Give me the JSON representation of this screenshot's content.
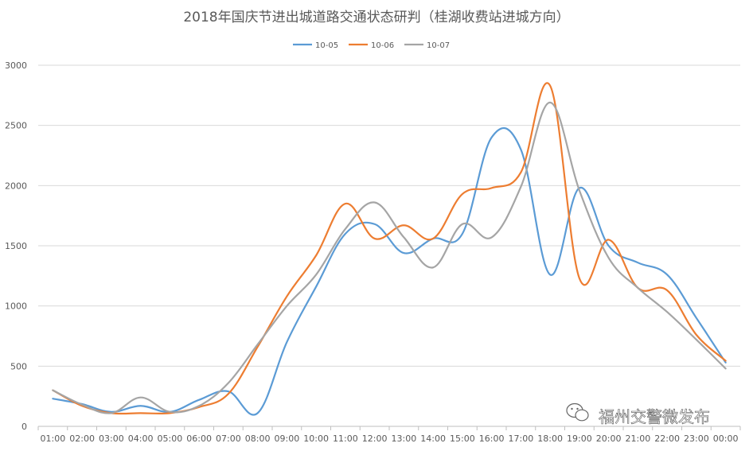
{
  "chart_data": {
    "type": "line",
    "title": "2018年国庆节进出城道路交通状态研判（桂湖收费站进城方向）",
    "categories": [
      "01:00",
      "02:00",
      "03:00",
      "04:00",
      "05:00",
      "06:00",
      "07:00",
      "08:00",
      "09:00",
      "10:00",
      "11:00",
      "12:00",
      "13:00",
      "14:00",
      "15:00",
      "16:00",
      "17:00",
      "18:00",
      "19:00",
      "20:00",
      "21:00",
      "22:00",
      "23:00",
      "00:00"
    ],
    "series": [
      {
        "name": "10-05",
        "color": "#5b9bd5",
        "values": [
          230,
          185,
          120,
          170,
          120,
          220,
          290,
          110,
          700,
          1160,
          1600,
          1680,
          1440,
          1560,
          1600,
          2400,
          2300,
          1260,
          1980,
          1500,
          1360,
          1260,
          900,
          530
        ]
      },
      {
        "name": "10-06",
        "color": "#ed7d31",
        "values": [
          300,
          170,
          110,
          110,
          110,
          160,
          270,
          660,
          1080,
          1420,
          1850,
          1560,
          1670,
          1560,
          1930,
          1980,
          2110,
          2830,
          1230,
          1550,
          1150,
          1130,
          760,
          545
        ]
      },
      {
        "name": "10-07",
        "color": "#a5a5a5",
        "values": [
          300,
          180,
          110,
          240,
          120,
          170,
          360,
          680,
          1000,
          1260,
          1640,
          1860,
          1570,
          1320,
          1680,
          1570,
          1990,
          2690,
          1960,
          1400,
          1150,
          950,
          720,
          480
        ]
      }
    ],
    "ylim": [
      0,
      3000
    ],
    "yticks": [
      0,
      500,
      1000,
      1500,
      2000,
      2500,
      3000
    ],
    "grid": true,
    "legend": "top-center"
  },
  "watermark": {
    "text": "福州交警微发布",
    "icon": "wechat-icon"
  }
}
